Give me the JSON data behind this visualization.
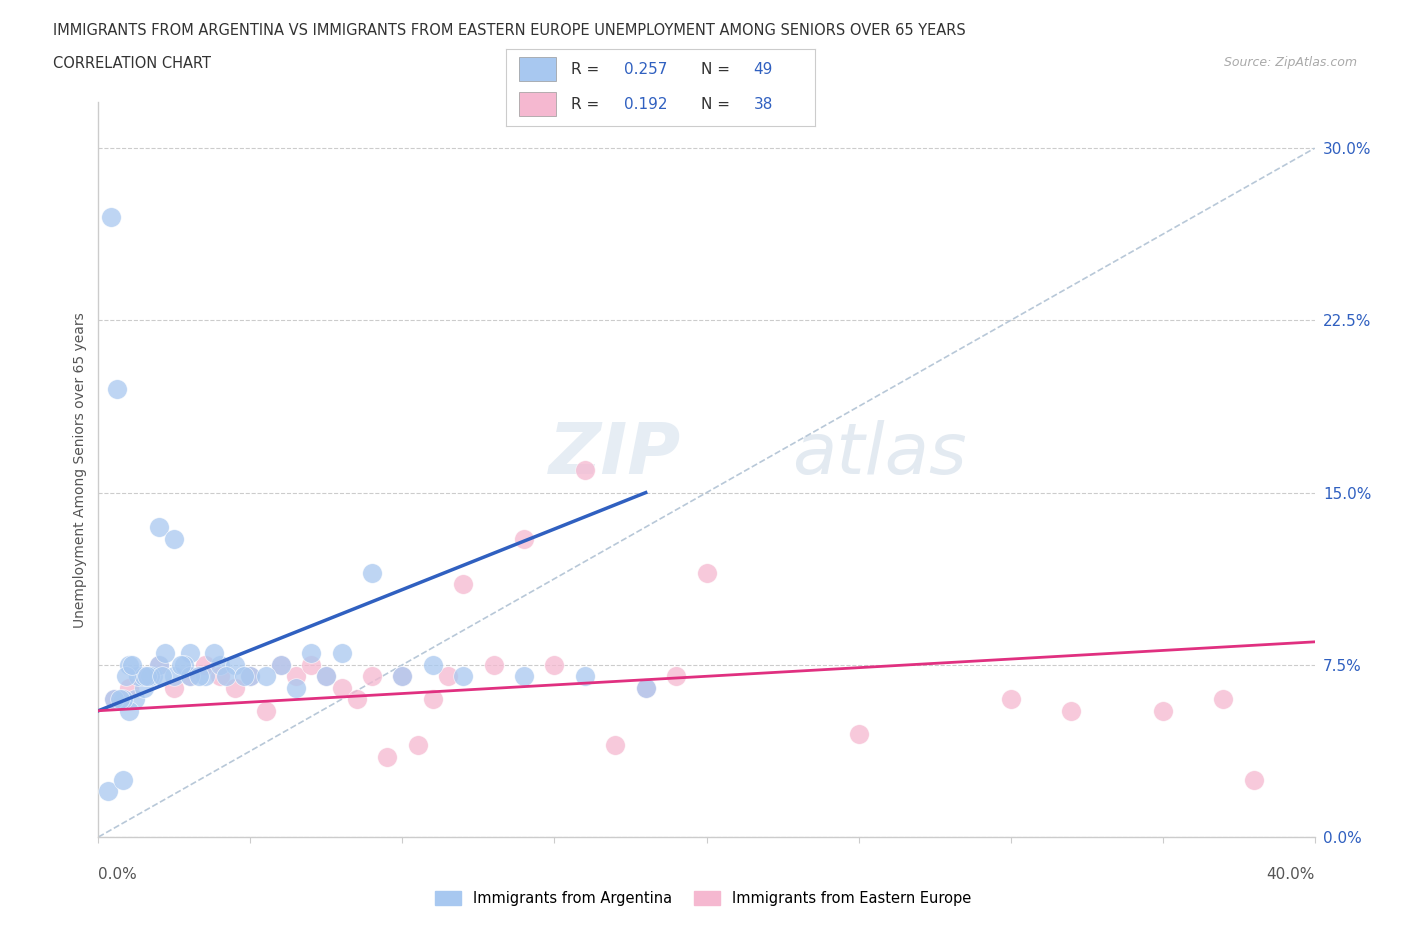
{
  "title_line1": "IMMIGRANTS FROM ARGENTINA VS IMMIGRANTS FROM EASTERN EUROPE UNEMPLOYMENT AMONG SENIORS OVER 65 YEARS",
  "title_line2": "CORRELATION CHART",
  "source": "Source: ZipAtlas.com",
  "ylabel": "Unemployment Among Seniors over 65 years",
  "ytick_vals": [
    0.0,
    7.5,
    15.0,
    22.5,
    30.0
  ],
  "xrange": [
    0.0,
    40.0
  ],
  "yrange": [
    0.0,
    32.0
  ],
  "argentina_color": "#a8c8f0",
  "eastern_color": "#f5b8d0",
  "argentina_line_color": "#3060c0",
  "eastern_line_color": "#e03080",
  "watermark_zip": "ZIP",
  "watermark_atlas": "atlas",
  "argentina_scatter_x": [
    1.2,
    1.8,
    1.0,
    2.0,
    1.5,
    2.5,
    0.8,
    3.0,
    1.3,
    2.8,
    0.5,
    1.7,
    2.2,
    3.5,
    4.0,
    2.0,
    1.0,
    0.7,
    1.5,
    3.0,
    2.5,
    4.5,
    5.0,
    6.0,
    7.0,
    5.5,
    3.8,
    4.2,
    6.5,
    8.0,
    9.0,
    10.0,
    12.0,
    14.0,
    16.0,
    18.0,
    0.4,
    0.6,
    0.9,
    1.1,
    1.6,
    2.1,
    2.7,
    3.3,
    4.8,
    7.5,
    11.0,
    0.3,
    0.8
  ],
  "argentina_scatter_y": [
    6.0,
    7.0,
    5.5,
    7.5,
    6.5,
    7.0,
    6.0,
    8.0,
    7.0,
    7.5,
    6.0,
    7.0,
    8.0,
    7.0,
    7.5,
    13.5,
    7.5,
    6.0,
    7.0,
    7.0,
    13.0,
    7.5,
    7.0,
    7.5,
    8.0,
    7.0,
    8.0,
    7.0,
    6.5,
    8.0,
    11.5,
    7.0,
    7.0,
    7.0,
    7.0,
    6.5,
    27.0,
    19.5,
    7.0,
    7.5,
    7.0,
    7.0,
    7.5,
    7.0,
    7.0,
    7.0,
    7.5,
    2.0,
    2.5
  ],
  "eastern_scatter_x": [
    0.5,
    1.0,
    1.5,
    2.0,
    2.5,
    3.0,
    3.5,
    4.0,
    4.5,
    5.0,
    5.5,
    6.0,
    6.5,
    7.0,
    7.5,
    8.0,
    8.5,
    9.0,
    9.5,
    10.0,
    10.5,
    11.0,
    11.5,
    12.0,
    13.0,
    14.0,
    15.0,
    16.0,
    17.0,
    18.0,
    19.0,
    20.0,
    25.0,
    30.0,
    32.0,
    35.0,
    37.0,
    38.0
  ],
  "eastern_scatter_y": [
    6.0,
    6.5,
    7.0,
    7.5,
    6.5,
    7.0,
    7.5,
    7.0,
    6.5,
    7.0,
    5.5,
    7.5,
    7.0,
    7.5,
    7.0,
    6.5,
    6.0,
    7.0,
    3.5,
    7.0,
    4.0,
    6.0,
    7.0,
    11.0,
    7.5,
    13.0,
    7.5,
    16.0,
    4.0,
    6.5,
    7.0,
    11.5,
    4.5,
    6.0,
    5.5,
    5.5,
    6.0,
    2.5
  ],
  "arg_trend_x": [
    0.0,
    18.0
  ],
  "arg_trend_y": [
    5.5,
    15.0
  ],
  "eas_trend_x": [
    0.0,
    40.0
  ],
  "eas_trend_y": [
    5.5,
    8.5
  ],
  "dash_trend_x": [
    0.0,
    40.0
  ],
  "dash_trend_y": [
    0.0,
    30.0
  ]
}
